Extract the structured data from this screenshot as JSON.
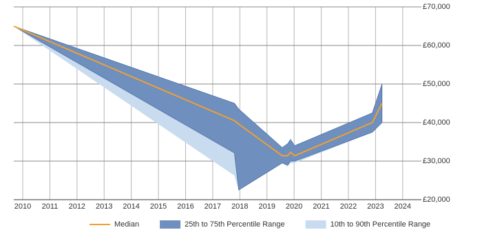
{
  "chart_data": {
    "type": "line",
    "x": [
      2009.67,
      2017.8,
      2017.96,
      2019.56,
      2019.76,
      2019.87,
      2020.02,
      2022.88,
      2023.24
    ],
    "series": [
      {
        "name": "Median",
        "color": "#f0a030",
        "values": [
          65000,
          40500,
          39600,
          31400,
          31400,
          32300,
          31400,
          40000,
          45000
        ]
      },
      {
        "name": "25th to 75th Percentile Range",
        "color": "#6f8fbf",
        "lower": [
          65000,
          32100,
          22500,
          29500,
          29000,
          30000,
          30000,
          37500,
          40000
        ],
        "upper": [
          65000,
          45000,
          43500,
          33500,
          34500,
          35500,
          34000,
          42500,
          50000
        ]
      },
      {
        "name": "10th to 90th Percentile Range",
        "color": "#c9dbef",
        "lower": [
          65000,
          26250,
          22500,
          29500,
          28500,
          29500,
          29500,
          37500,
          40000
        ],
        "upper": [
          65000,
          45000,
          43500,
          33500,
          34500,
          36000,
          34000,
          42500,
          50000
        ]
      }
    ],
    "xlim": [
      2009.67,
      2024.69
    ],
    "xticks": [
      2010,
      2011,
      2012,
      2013,
      2014,
      2015,
      2016,
      2017,
      2018,
      2019,
      2020,
      2021,
      2022,
      2023,
      2024
    ],
    "ylim": [
      20000,
      70000
    ],
    "yticks": [
      {
        "value": 20000,
        "label": "£20,000"
      },
      {
        "value": 30000,
        "label": "£30,000"
      },
      {
        "value": 40000,
        "label": "£40,000"
      },
      {
        "value": 50000,
        "label": "£50,000"
      },
      {
        "value": 60000,
        "label": "£60,000"
      },
      {
        "value": 70000,
        "label": "£70,000"
      }
    ],
    "grid": true
  }
}
